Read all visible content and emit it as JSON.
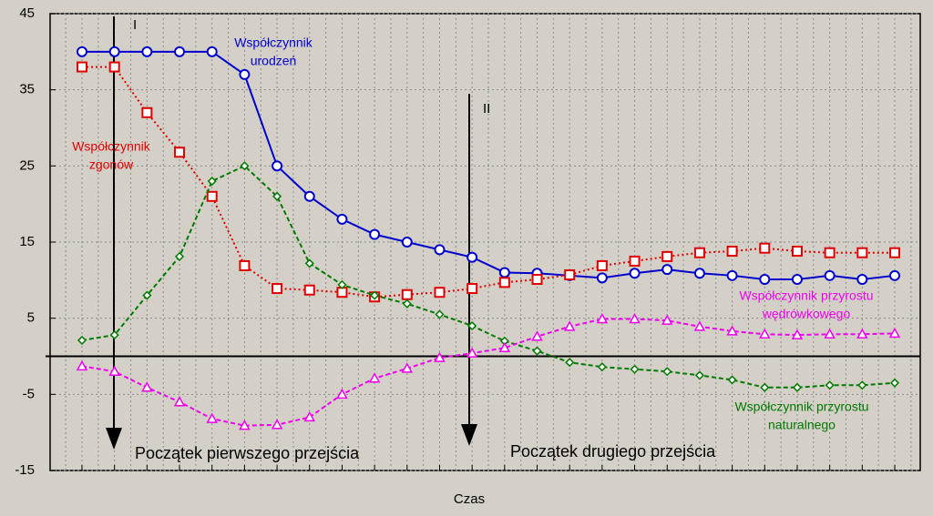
{
  "chart_data": {
    "type": "line",
    "xlabel": "Czas",
    "categories": [
      null,
      null,
      null,
      null,
      null,
      null,
      null,
      null,
      null,
      null,
      null,
      null,
      null,
      null,
      null,
      null,
      null,
      null,
      null,
      null,
      null,
      null,
      null,
      null,
      null,
      null
    ],
    "ylim": [
      -15,
      45
    ],
    "yticks": [
      -15,
      -5,
      5,
      15,
      25,
      35,
      45
    ],
    "grid": true,
    "series": [
      {
        "label": [
          "Współczynnik",
          "urodzeń"
        ],
        "color": "#0000cc",
        "marker": "circle",
        "linestyle": "solid",
        "values": [
          40,
          40,
          40,
          40,
          40,
          37,
          25,
          21,
          18,
          16,
          15,
          14,
          13,
          11,
          10.9,
          10.6,
          10.3,
          10.9,
          11.4,
          10.9,
          10.6,
          10.1,
          10.1,
          10.6,
          10.1,
          10.6
        ]
      },
      {
        "label": [
          "Współczynnik",
          "zgonów"
        ],
        "color": "#e00000",
        "marker": "square",
        "linestyle": "dotted",
        "values": [
          38,
          38,
          32,
          26.8,
          21,
          11.9,
          8.9,
          8.7,
          8.4,
          7.8,
          8.1,
          8.4,
          8.9,
          9.7,
          10.1,
          10.7,
          11.9,
          12.5,
          13.1,
          13.6,
          13.8,
          14.2,
          13.8,
          13.6,
          13.6,
          13.6
        ]
      },
      {
        "label": [
          "Współczynnik przyrostu",
          "naturalnego"
        ],
        "color": "#007a00",
        "marker": "diamond",
        "linestyle": "dashed",
        "values": [
          2.1,
          2.8,
          8,
          13.1,
          23,
          25,
          21,
          12.2,
          9.4,
          8,
          6.9,
          5.5,
          4,
          2,
          0.7,
          -0.8,
          -1.4,
          -1.7,
          -2,
          -2.5,
          -3.1,
          -4.1,
          -4.1,
          -3.8,
          -3.8,
          -3.5
        ]
      },
      {
        "label": [
          "Współczynnik przyrostu",
          "wędrówkowego"
        ],
        "color": "#ee00ee",
        "marker": "triangle",
        "linestyle": "dashed",
        "values": [
          -1.3,
          -2,
          -4.1,
          -6,
          -8.2,
          -9.1,
          -9,
          -8,
          -5,
          -2.9,
          -1.6,
          -0.2,
          0.4,
          1.1,
          2.6,
          3.9,
          4.9,
          4.9,
          4.7,
          3.9,
          3.3,
          2.9,
          2.8,
          2.9,
          2.9,
          3
        ]
      }
    ],
    "annotations": [
      {
        "text": "I"
      },
      {
        "text": "II"
      },
      {
        "text": "Początek pierwszego przejścia"
      },
      {
        "text": "Początek drugiego przejścia"
      }
    ]
  }
}
